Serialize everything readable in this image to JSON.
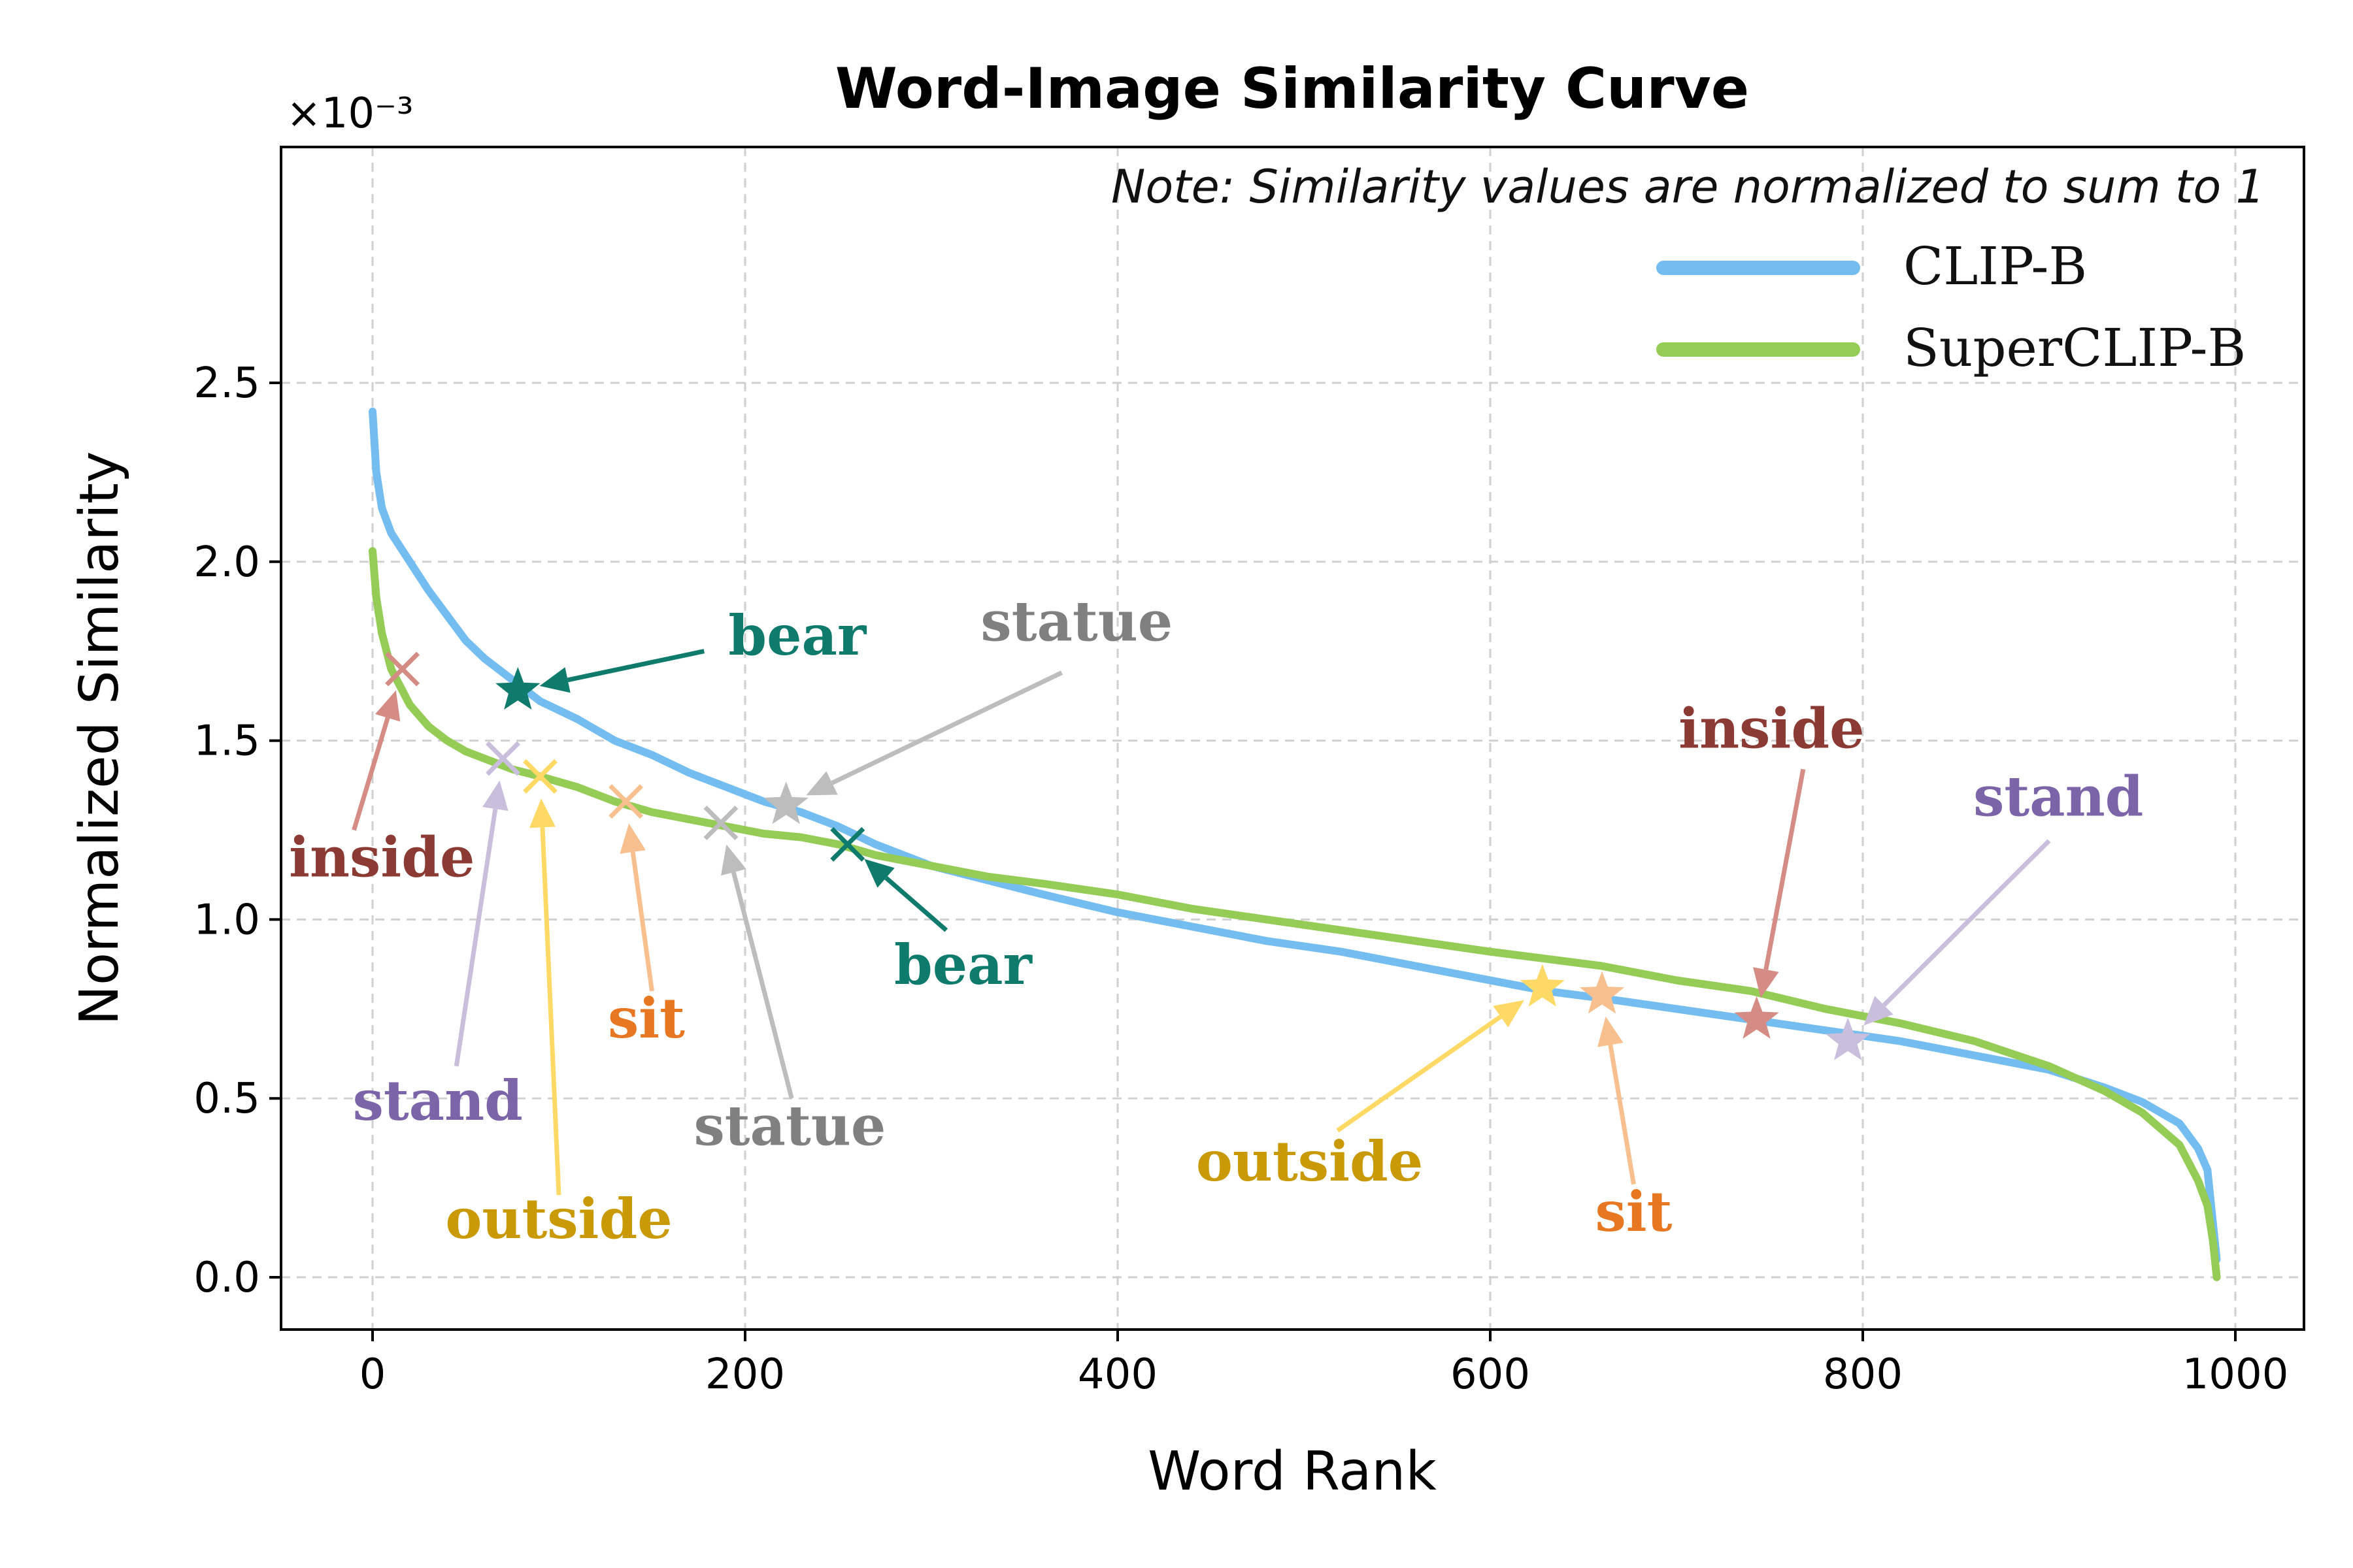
{
  "chart_data": {
    "type": "line",
    "title": "Word-Image Similarity Curve",
    "note": "Note: Similarity values are normalized to sum to 1",
    "xlabel": "Word Rank",
    "ylabel": "Normalized Similarity",
    "y_multiplier": "×10⁻³",
    "xlim": [
      -50,
      1040
    ],
    "ylim": [
      -0.12,
      2.54
    ],
    "xticks": [
      0,
      200,
      400,
      600,
      800,
      1000
    ],
    "xtick_labels": [
      "0",
      "200",
      "400",
      "600",
      "800",
      "1000"
    ],
    "yticks": [
      0.0,
      0.5,
      1.0,
      1.5,
      2.0,
      2.5
    ],
    "ytick_labels": [
      "0.0",
      "0.5",
      "1.0",
      "1.5",
      "2.0",
      "2.5"
    ],
    "grid": true,
    "legend_position": "top-right",
    "series": [
      {
        "name": "CLIP-B",
        "color": "#74BDF0",
        "x": [
          0,
          2,
          5,
          10,
          20,
          30,
          40,
          50,
          60,
          75,
          90,
          110,
          130,
          150,
          170,
          190,
          210,
          230,
          250,
          270,
          300,
          330,
          360,
          400,
          440,
          480,
          520,
          560,
          600,
          630,
          660,
          700,
          740,
          780,
          820,
          860,
          900,
          930,
          950,
          970,
          980,
          985,
          988,
          990
        ],
        "y": [
          2.42,
          2.25,
          2.15,
          2.08,
          2.0,
          1.92,
          1.85,
          1.78,
          1.73,
          1.67,
          1.61,
          1.56,
          1.5,
          1.46,
          1.41,
          1.37,
          1.33,
          1.3,
          1.26,
          1.21,
          1.15,
          1.11,
          1.07,
          1.02,
          0.98,
          0.94,
          0.91,
          0.87,
          0.83,
          0.8,
          0.78,
          0.75,
          0.72,
          0.69,
          0.66,
          0.62,
          0.58,
          0.53,
          0.49,
          0.43,
          0.36,
          0.3,
          0.15,
          0.05
        ]
      },
      {
        "name": "SuperCLIP-B",
        "color": "#94CC56",
        "x": [
          0,
          2,
          5,
          10,
          15,
          20,
          30,
          40,
          50,
          60,
          75,
          90,
          110,
          130,
          150,
          170,
          190,
          210,
          230,
          250,
          270,
          300,
          330,
          360,
          400,
          440,
          480,
          520,
          560,
          600,
          630,
          660,
          700,
          740,
          780,
          820,
          860,
          900,
          930,
          950,
          970,
          980,
          985,
          988,
          990
        ],
        "y": [
          2.03,
          1.9,
          1.8,
          1.7,
          1.65,
          1.6,
          1.54,
          1.5,
          1.47,
          1.45,
          1.42,
          1.4,
          1.37,
          1.33,
          1.3,
          1.28,
          1.26,
          1.24,
          1.23,
          1.21,
          1.18,
          1.15,
          1.12,
          1.1,
          1.07,
          1.03,
          1.0,
          0.97,
          0.94,
          0.91,
          0.89,
          0.87,
          0.83,
          0.8,
          0.75,
          0.71,
          0.66,
          0.59,
          0.52,
          0.46,
          0.37,
          0.27,
          0.2,
          0.1,
          0.0
        ]
      }
    ],
    "annotations": [
      {
        "word": "bear",
        "series": "CLIP-B",
        "marker": "star",
        "x": 78,
        "y": 1.64,
        "color": "#0F7B6C",
        "text_x": 228,
        "text_y": 1.74,
        "arrow_x": 178,
        "arrow_y": 1.75
      },
      {
        "word": "statue",
        "series": "CLIP-B",
        "marker": "star",
        "x": 222,
        "y": 1.32,
        "color": "#BDBDBD",
        "text_color": "#808080",
        "text_x": 378,
        "text_y": 1.78,
        "arrow_x": 370,
        "arrow_y": 1.69
      },
      {
        "word": "outside",
        "series": "CLIP-B",
        "marker": "star",
        "x": 628,
        "y": 0.81,
        "color": "#FFD966",
        "text_color": "#C99A06",
        "text_x": 503,
        "text_y": 0.27,
        "arrow_x": 518,
        "arrow_y": 0.41
      },
      {
        "word": "sit",
        "series": "CLIP-B",
        "marker": "star",
        "x": 660,
        "y": 0.79,
        "color": "#F7C08E",
        "text_color": "#E87722",
        "text_x": 677,
        "text_y": 0.13,
        "arrow_x": 677,
        "arrow_y": 0.26
      },
      {
        "word": "inside",
        "series": "CLIP-B",
        "marker": "star",
        "x": 743,
        "y": 0.72,
        "color": "#D48C85",
        "text_color": "#8B3A34",
        "text_x": 751,
        "text_y": 1.48,
        "arrow_x": 768,
        "arrow_y": 1.42
      },
      {
        "word": "stand",
        "series": "CLIP-B",
        "marker": "star",
        "x": 792,
        "y": 0.66,
        "color": "#C9BFDC",
        "text_color": "#7B64A8",
        "text_x": 905,
        "text_y": 1.29,
        "arrow_x": 900,
        "arrow_y": 1.22
      },
      {
        "word": "inside",
        "series": "SuperCLIP-B",
        "marker": "x",
        "x": 16,
        "y": 1.7,
        "color": "#D48C85",
        "text_color": "#8B3A34",
        "text_x": 5,
        "text_y": 1.12,
        "arrow_x": -10,
        "arrow_y": 1.25
      },
      {
        "word": "stand",
        "series": "SuperCLIP-B",
        "marker": "x",
        "x": 70,
        "y": 1.45,
        "color": "#C9BFDC",
        "text_color": "#7B64A8",
        "text_x": 35,
        "text_y": 0.44,
        "arrow_x": 45,
        "arrow_y": 0.59
      },
      {
        "word": "outside",
        "series": "SuperCLIP-B",
        "marker": "x",
        "x": 90,
        "y": 1.4,
        "color": "#FFD966",
        "text_color": "#C99A06",
        "text_x": 100,
        "text_y": 0.11,
        "arrow_x": 100,
        "arrow_y": 0.23
      },
      {
        "word": "sit",
        "series": "SuperCLIP-B",
        "marker": "x",
        "x": 136,
        "y": 1.33,
        "color": "#F7C08E",
        "text_color": "#E87722",
        "text_x": 147,
        "text_y": 0.67,
        "arrow_x": 150,
        "arrow_y": 0.8
      },
      {
        "word": "statue",
        "series": "SuperCLIP-B",
        "marker": "x",
        "x": 187,
        "y": 1.27,
        "color": "#BDBDBD",
        "text_color": "#808080",
        "text_x": 224,
        "text_y": 0.37,
        "arrow_x": 225,
        "arrow_y": 0.5
      },
      {
        "word": "bear",
        "series": "SuperCLIP-B",
        "marker": "x",
        "x": 255,
        "y": 1.21,
        "color": "#0F7B6C",
        "text_x": 317,
        "text_y": 0.82,
        "arrow_x": 308,
        "arrow_y": 0.97
      }
    ]
  }
}
